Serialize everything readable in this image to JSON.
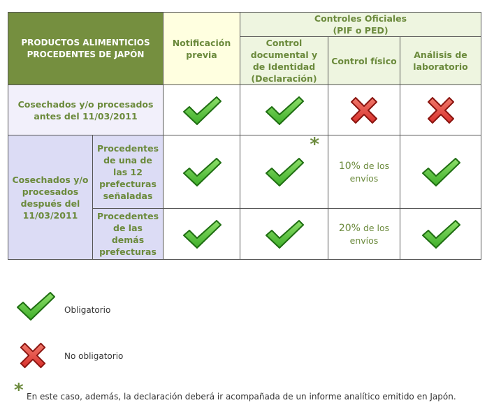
{
  "header": {
    "products_title": "PRODUCTOS ALIMENTICIOS PROCEDENTES DE JAPÓN",
    "notificacion": "Notificación previa",
    "controles_line1": "Controles Oficiales",
    "controles_line2": "(PIF o PED)",
    "control_documental": "Control documental y de Identidad (Declaración)",
    "control_fisico": "Control físico",
    "analisis": "Análisis de laboratorio"
  },
  "rows": {
    "antes": {
      "label": "Cosechados y/o procesados antes del 11/03/2011",
      "notificacion": "check-icon",
      "documental": "check-icon",
      "fisico": "cross-icon",
      "analisis": "cross-icon"
    },
    "despues": {
      "label": "Cosechados y/o procesados después del 11/03/2011",
      "sub1": {
        "label": "Procedentes de una de las 12 prefecturas señaladas",
        "star": "*",
        "fisico_pct": "10%",
        "fisico_text": "de los envíos"
      },
      "sub2": {
        "label": "Procedentes de las demás prefecturas",
        "fisico_pct": "20%",
        "fisico_text": "de los envíos"
      }
    }
  },
  "legend": {
    "obligatorio": "Obligatorio",
    "no_obligatorio": "No obligatorio",
    "footnote_star": "*",
    "footnote": "En este caso, además, la declaración deberá ir acompañada de un informe analítico emitido en Japón."
  },
  "colors": {
    "header_dark": "#758f3f",
    "check_green": "#3fae2a",
    "cross_red": "#d9302c",
    "text_green": "#6b8a3c"
  }
}
